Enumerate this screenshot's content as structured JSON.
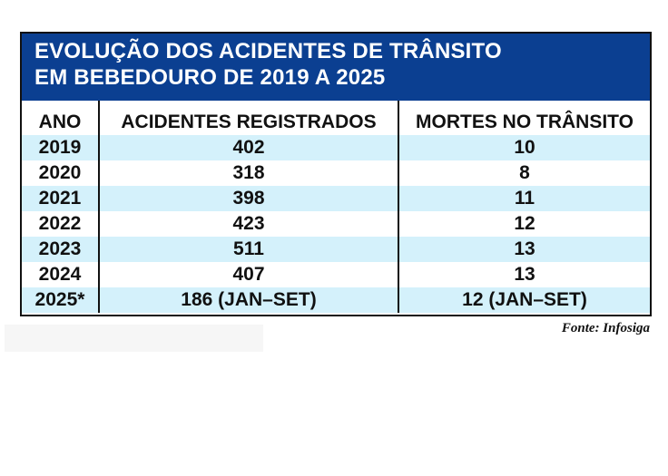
{
  "title_line1": "EVOLUÇÃO DOS ACIDENTES DE TRÂNSITO",
  "title_line2": "EM BEBEDOURO DE 2019 A 2025",
  "source": "Fonte: Infosiga",
  "colors": {
    "header_bg": "#0b3f91",
    "alt_row": "#d4f1fb"
  },
  "chart_data": {
    "type": "table",
    "title": "EVOLUÇÃO DOS ACIDENTES DE TRÂNSITO EM BEBEDOURO DE 2019 A 2025",
    "columns": [
      "ANO",
      "ACIDENTES REGISTRADOS",
      "MORTES NO TRÂNSITO"
    ],
    "rows": [
      [
        "2019",
        "402",
        "10"
      ],
      [
        "2020",
        "318",
        "8"
      ],
      [
        "2021",
        "398",
        "11"
      ],
      [
        "2022",
        "423",
        "12"
      ],
      [
        "2023",
        "511",
        "13"
      ],
      [
        "2024",
        "407",
        "13"
      ],
      [
        "2025*",
        "186 (JAN–SET)",
        "12 (JAN–SET)"
      ]
    ]
  }
}
